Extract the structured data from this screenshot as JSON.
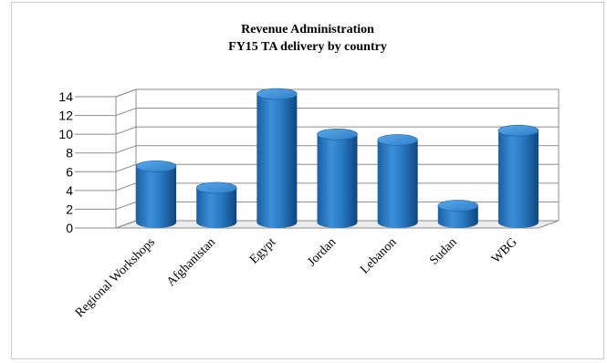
{
  "chart_data": {
    "type": "bar",
    "title": "Revenue Administration",
    "subtitle": "FY15 TA delivery by country",
    "categories": [
      "Regional Workshops",
      "Afghanistan",
      "Egypt",
      "Jordan",
      "Lebanon",
      "Sudan",
      "WBG"
    ],
    "values": [
      6,
      3.7,
      13.7,
      9.4,
      8.8,
      1.8,
      9.8
    ],
    "yticks": [
      "0",
      "2",
      "4",
      "6",
      "8",
      "10",
      "12",
      "14"
    ],
    "ylim": [
      0,
      14
    ],
    "xlabel": "",
    "ylabel": "",
    "grid": true,
    "style": "3d-cylinder",
    "colors": {
      "bar": "#2e7ec6",
      "bar_dark": "#0f4f8a",
      "bar_light": "#5aa7e6",
      "grid": "#8c8c8c"
    }
  }
}
